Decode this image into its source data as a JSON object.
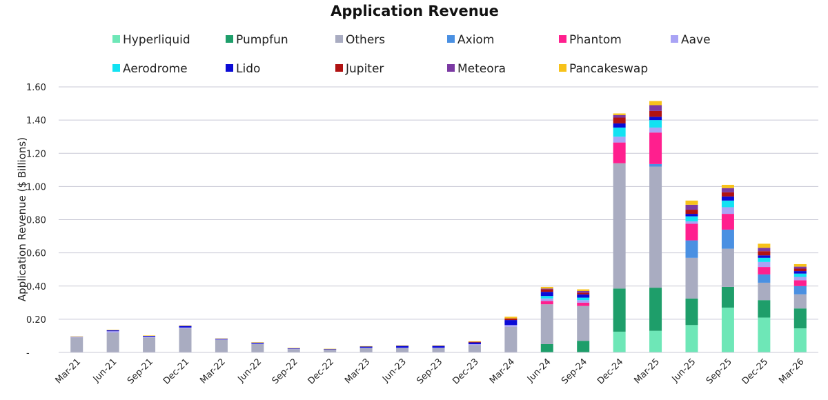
{
  "chart_data": {
    "type": "bar",
    "stacked": true,
    "title": "Application Revenue",
    "ylabel": "Application Revenue ($ Billions)",
    "xlabel": "",
    "ylim": [
      0,
      1.6
    ],
    "y_ticks": [
      {
        "value": 0,
        "label": "-"
      },
      {
        "value": 0.2,
        "label": "0.20"
      },
      {
        "value": 0.4,
        "label": "0.40"
      },
      {
        "value": 0.6,
        "label": "0.60"
      },
      {
        "value": 0.8,
        "label": "0.80"
      },
      {
        "value": 1.0,
        "label": "1.00"
      },
      {
        "value": 1.2,
        "label": "1.20"
      },
      {
        "value": 1.4,
        "label": "1.40"
      },
      {
        "value": 1.6,
        "label": "1.60"
      }
    ],
    "grid": true,
    "legend_position": "top",
    "categories": [
      "Mar-21",
      "Jun-21",
      "Sep-21",
      "Dec-21",
      "Mar-22",
      "Jun-22",
      "Sep-22",
      "Dec-22",
      "Mar-23",
      "Jun-23",
      "Sep-23",
      "Dec-23",
      "Mar-24",
      "Jun-24",
      "Sep-24",
      "Dec-24",
      "Mar-25",
      "Jun-25",
      "Sep-25",
      "Dec-25",
      "Mar-26"
    ],
    "series": [
      {
        "name": "Hyperliquid",
        "color": "#6ee7b7",
        "values": [
          0,
          0,
          0,
          0,
          0,
          0,
          0,
          0,
          0,
          0,
          0,
          0,
          0,
          0,
          0,
          0.125,
          0.13,
          0.165,
          0.27,
          0.21,
          0.145
        ]
      },
      {
        "name": "Pumpfun",
        "color": "#1e9e6a",
        "values": [
          0,
          0,
          0,
          0,
          0,
          0,
          0,
          0,
          0,
          0,
          0,
          0,
          0,
          0.05,
          0.07,
          0.26,
          0.26,
          0.16,
          0.125,
          0.105,
          0.12
        ]
      },
      {
        "name": "Others",
        "color": "#a9acc1",
        "values": [
          0.09,
          0.12,
          0.09,
          0.145,
          0.075,
          0.05,
          0.02,
          0.015,
          0.025,
          0.025,
          0.025,
          0.045,
          0.155,
          0.24,
          0.21,
          0.755,
          0.73,
          0.245,
          0.23,
          0.105,
          0.085
        ]
      },
      {
        "name": "Axiom",
        "color": "#4a90e2",
        "values": [
          0,
          0,
          0,
          0,
          0,
          0,
          0,
          0,
          0,
          0,
          0,
          0,
          0,
          0,
          0,
          0,
          0.015,
          0.105,
          0.115,
          0.05,
          0.05
        ]
      },
      {
        "name": "Phantom",
        "color": "#ff1f8e",
        "values": [
          0,
          0,
          0,
          0,
          0,
          0,
          0,
          0,
          0,
          0,
          0,
          0,
          0,
          0.02,
          0.02,
          0.125,
          0.19,
          0.1,
          0.095,
          0.045,
          0.035
        ]
      },
      {
        "name": "Aave",
        "color": "#a9a3f5",
        "values": [
          0.003,
          0.008,
          0.005,
          0.005,
          0.003,
          0.003,
          0.002,
          0.002,
          0.003,
          0.003,
          0.003,
          0.005,
          0.01,
          0.015,
          0.015,
          0.035,
          0.03,
          0.015,
          0.04,
          0.03,
          0.02
        ]
      },
      {
        "name": "Aerodrome",
        "color": "#12e2f2",
        "values": [
          0,
          0,
          0,
          0,
          0,
          0,
          0,
          0,
          0,
          0,
          0,
          0,
          0,
          0.015,
          0.015,
          0.055,
          0.045,
          0.03,
          0.04,
          0.025,
          0.02
        ]
      },
      {
        "name": "Lido",
        "color": "#0b0bd6",
        "values": [
          0.002,
          0.006,
          0.005,
          0.01,
          0.005,
          0.007,
          0.004,
          0.004,
          0.008,
          0.012,
          0.012,
          0.01,
          0.03,
          0.025,
          0.02,
          0.025,
          0.02,
          0.015,
          0.025,
          0.015,
          0.015
        ]
      },
      {
        "name": "Jupiter",
        "color": "#b01212",
        "values": [
          0,
          0,
          0,
          0,
          0,
          0,
          0,
          0,
          0,
          0,
          0,
          0.004,
          0.01,
          0.015,
          0.01,
          0.035,
          0.035,
          0.025,
          0.025,
          0.025,
          0.015
        ]
      },
      {
        "name": "Meteora",
        "color": "#7b3aa3",
        "values": [
          0,
          0,
          0,
          0,
          0,
          0,
          0,
          0,
          0,
          0,
          0,
          0,
          0,
          0.005,
          0.01,
          0.015,
          0.035,
          0.03,
          0.025,
          0.02,
          0.012
        ]
      },
      {
        "name": "Pancakeswap",
        "color": "#f7c21a",
        "values": [
          0.001,
          0.002,
          0.002,
          0.002,
          0.001,
          0.001,
          0.001,
          0.001,
          0.002,
          0.002,
          0.002,
          0.003,
          0.01,
          0.01,
          0.01,
          0.01,
          0.025,
          0.025,
          0.02,
          0.025,
          0.015
        ]
      }
    ]
  }
}
